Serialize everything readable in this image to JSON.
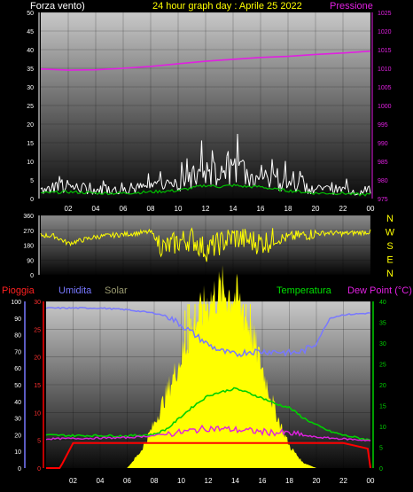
{
  "header": {
    "left_label": "Forza vento)",
    "center_title": "24 hour graph day : Aprile 25 2022",
    "right_label": "Pressione"
  },
  "legend_bottom": {
    "pioggia": "Pioggia",
    "umidita": "Umidita",
    "solar": "Solar",
    "temperatura": "Temperatura",
    "dewpoint": "Dew Point (°C)"
  },
  "colors": {
    "background": "#000000",
    "wind": "#ffffff",
    "wind_avg": "#00c000",
    "pressure": "#e020e0",
    "direction": "#ffff00",
    "humidity": "#7878ff",
    "solar": "#ffff00",
    "temperature": "#00d000",
    "dewpoint": "#e020e0",
    "rain": "#ff0000",
    "axis_left": "#ffffff",
    "axis_right_pressure": "#e020e0"
  },
  "chart_data": [
    {
      "type": "line",
      "panel": "wind-pressure",
      "x_ticks": [
        "02",
        "04",
        "06",
        "08",
        "10",
        "12",
        "14",
        "16",
        "18",
        "20",
        "22",
        "00"
      ],
      "ylim_left": [
        0,
        50
      ],
      "y_ticks_left": [
        "0",
        "5",
        "10",
        "15",
        "20",
        "25",
        "30",
        "35",
        "40",
        "45",
        "50"
      ],
      "ylim_right": [
        975,
        1025
      ],
      "y_ticks_right": [
        "975",
        "980",
        "985",
        "990",
        "995",
        "1000",
        "1005",
        "1010",
        "1015",
        "1020",
        "1025"
      ],
      "series": [
        {
          "name": "Forza vento)",
          "x": [
            0,
            2,
            4,
            6,
            8,
            10,
            11,
            12,
            13,
            14,
            15,
            16,
            17,
            18,
            19,
            20,
            21,
            22,
            23,
            24
          ],
          "values": [
            3,
            4,
            3,
            3,
            4,
            5,
            7,
            9,
            8,
            9,
            8,
            8,
            6,
            5,
            4,
            3,
            3,
            3,
            2,
            2
          ]
        },
        {
          "name": "Pressione",
          "x": [
            0,
            2,
            4,
            6,
            8,
            10,
            12,
            14,
            16,
            18,
            20,
            22,
            24
          ],
          "values": [
            1009.8,
            1009.5,
            1009.6,
            1010.0,
            1010.5,
            1011.2,
            1011.9,
            1012.4,
            1012.9,
            1013.2,
            1013.7,
            1014.1,
            1014.6
          ]
        }
      ]
    },
    {
      "type": "line",
      "panel": "direction",
      "x_ticks": [
        "02",
        "04",
        "06",
        "08",
        "10",
        "12",
        "14",
        "16",
        "18",
        "20",
        "22",
        "00"
      ],
      "ylim": [
        0,
        360
      ],
      "y_ticks": [
        "0",
        "90",
        "180",
        "270",
        "360"
      ],
      "compass": [
        "N",
        "W",
        "S",
        "E",
        "N"
      ],
      "series": [
        {
          "name": "",
          "x": [
            0,
            1,
            2,
            4,
            6,
            8,
            9,
            10,
            11,
            12,
            13,
            14,
            15,
            16,
            17,
            18,
            19,
            20,
            21,
            22,
            23,
            24
          ],
          "values": [
            240,
            235,
            190,
            230,
            245,
            260,
            160,
            200,
            220,
            150,
            190,
            230,
            210,
            195,
            215,
            225,
            240,
            250,
            255,
            250,
            255,
            260
          ]
        }
      ]
    },
    {
      "type": "line",
      "panel": "rain-humidity-solar-temp",
      "x_ticks": [
        "02",
        "04",
        "06",
        "08",
        "10",
        "12",
        "14",
        "16",
        "18",
        "20",
        "22",
        "00"
      ],
      "ylim_pioggia": [
        0,
        30
      ],
      "y_ticks_pioggia": [
        "0",
        "5",
        "10",
        "15",
        "20",
        "25",
        "30"
      ],
      "ylim_umidita": [
        0,
        100
      ],
      "y_ticks_umidita": [
        "0",
        "10",
        "20",
        "30",
        "40",
        "50",
        "60",
        "70",
        "80",
        "90",
        "100"
      ],
      "ylim_temp": [
        0,
        40
      ],
      "y_ticks_temp": [
        "0",
        "5",
        "10",
        "15",
        "20",
        "25",
        "30",
        "35",
        "40"
      ],
      "series": [
        {
          "name": "Umidita",
          "x": [
            0,
            2,
            4,
            6,
            8,
            9,
            10,
            11,
            12,
            13,
            14,
            15,
            16,
            17,
            18,
            19,
            20,
            21,
            22,
            24
          ],
          "values": [
            96,
            96,
            96,
            95,
            93,
            91,
            86,
            80,
            74,
            70,
            68,
            70,
            70,
            70,
            69,
            70,
            75,
            90,
            92,
            93
          ]
        },
        {
          "name": "Temperatura",
          "x": [
            0,
            2,
            4,
            6,
            8,
            9,
            10,
            11,
            12,
            13,
            14,
            15,
            16,
            17,
            18,
            19,
            20,
            21,
            22,
            24
          ],
          "values": [
            7.9,
            7.8,
            7.8,
            7.7,
            8.1,
            9.5,
            12.4,
            15.1,
            17.4,
            18.3,
            19.1,
            18.0,
            16.8,
            15.4,
            14.5,
            12.1,
            10.3,
            8.8,
            7.9,
            6.7
          ]
        },
        {
          "name": "Dew Point (°C)",
          "x": [
            0,
            2,
            4,
            6,
            8,
            10,
            12,
            14,
            16,
            18,
            20,
            22,
            24
          ],
          "values": [
            7.0,
            7.1,
            7.2,
            7.3,
            7.8,
            8.6,
            9.6,
            9.2,
            8.7,
            8.3,
            7.4,
            7.0,
            6.6
          ]
        },
        {
          "name": "Pioggia",
          "x": [
            0,
            1,
            1.2,
            2,
            6,
            10,
            14,
            18,
            22,
            23.8,
            24
          ],
          "values": [
            0,
            0,
            0.8,
            4.5,
            4.5,
            4.5,
            4.5,
            4.5,
            4.5,
            3.5,
            0
          ]
        },
        {
          "name": "Solar",
          "x": [
            0,
            6,
            7,
            8,
            9,
            10,
            11,
            12,
            13,
            14,
            15,
            16,
            17,
            18,
            19,
            20,
            24
          ],
          "values": [
            0,
            0,
            3,
            8,
            14,
            20,
            26,
            30,
            32,
            31,
            26,
            18,
            10,
            4,
            1,
            0,
            0
          ]
        }
      ]
    }
  ]
}
